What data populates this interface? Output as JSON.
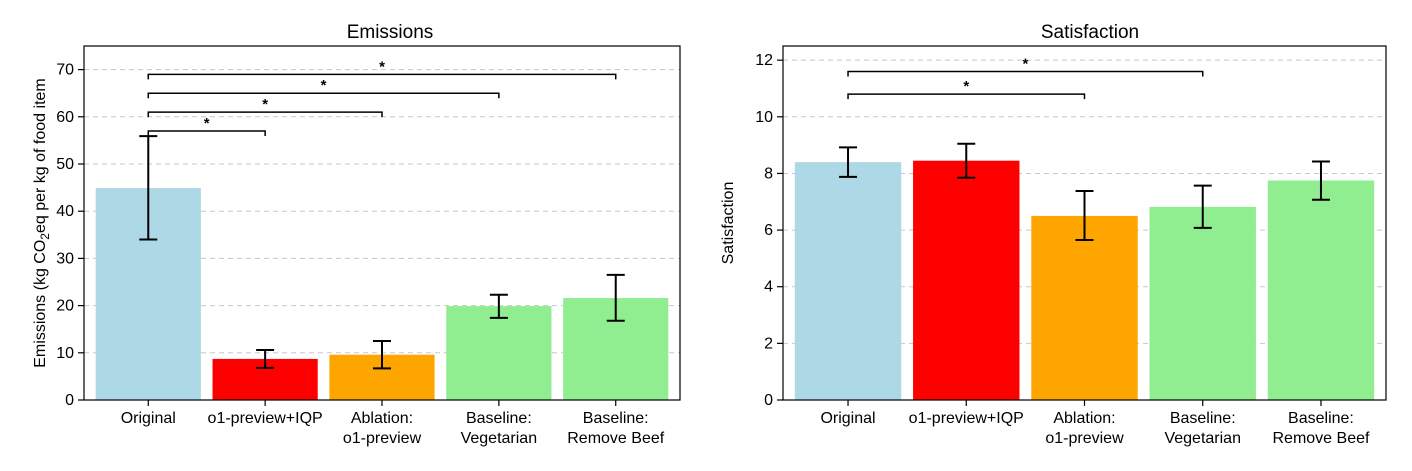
{
  "chart_data": [
    {
      "type": "bar",
      "title": "Emissions",
      "xlabel": "",
      "ylabel": "Emissions (kg CO",
      "ylabel_sub": "2",
      "ylabel_rest": "eq per kg of food item",
      "ylim": [
        0,
        75
      ],
      "yticks": [
        0,
        10,
        20,
        30,
        40,
        50,
        60,
        70
      ],
      "grid": true,
      "categories": [
        [
          "Original"
        ],
        [
          "o1-preview+IQP"
        ],
        [
          "Ablation:",
          "o1-preview"
        ],
        [
          "Baseline:",
          "Vegetarian"
        ],
        [
          "Baseline:",
          "Remove Beef"
        ]
      ],
      "values": [
        44.9,
        8.7,
        9.6,
        19.9,
        21.6
      ],
      "errors": [
        [
          34.0,
          55.9
        ],
        [
          6.8,
          10.6
        ],
        [
          6.7,
          12.5
        ],
        [
          17.4,
          22.3
        ],
        [
          16.8,
          26.5
        ]
      ],
      "colors": [
        "#add8e6",
        "#ff0000",
        "#ffa500",
        "#90ee90",
        "#90ee90"
      ],
      "significance": [
        {
          "from": 0,
          "to": 1,
          "y": 57.0,
          "label": "*"
        },
        {
          "from": 0,
          "to": 2,
          "y": 61.0,
          "label": "*"
        },
        {
          "from": 0,
          "to": 3,
          "y": 65.0,
          "label": "*"
        },
        {
          "from": 0,
          "to": 4,
          "y": 69.0,
          "label": "*"
        }
      ]
    },
    {
      "type": "bar",
      "title": "Satisfaction",
      "xlabel": "",
      "ylabel": "Satisfaction",
      "ylim": [
        0,
        12.5
      ],
      "yticks": [
        0,
        2,
        4,
        6,
        8,
        10,
        12
      ],
      "grid": true,
      "categories": [
        [
          "Original"
        ],
        [
          "o1-preview+IQP"
        ],
        [
          "Ablation:",
          "o1-preview"
        ],
        [
          "Baseline:",
          "Vegetarian"
        ],
        [
          "Baseline:",
          "Remove Beef"
        ]
      ],
      "values": [
        8.4,
        8.45,
        6.5,
        6.82,
        7.75
      ],
      "errors": [
        [
          7.88,
          8.92
        ],
        [
          7.85,
          9.05
        ],
        [
          5.65,
          7.38
        ],
        [
          6.08,
          7.57
        ],
        [
          7.07,
          8.42
        ]
      ],
      "colors": [
        "#add8e6",
        "#ff0000",
        "#ffa500",
        "#90ee90",
        "#90ee90"
      ],
      "significance": [
        {
          "from": 0,
          "to": 2,
          "y": 10.8,
          "label": "*"
        },
        {
          "from": 0,
          "to": 3,
          "y": 11.6,
          "label": "*"
        }
      ]
    }
  ]
}
